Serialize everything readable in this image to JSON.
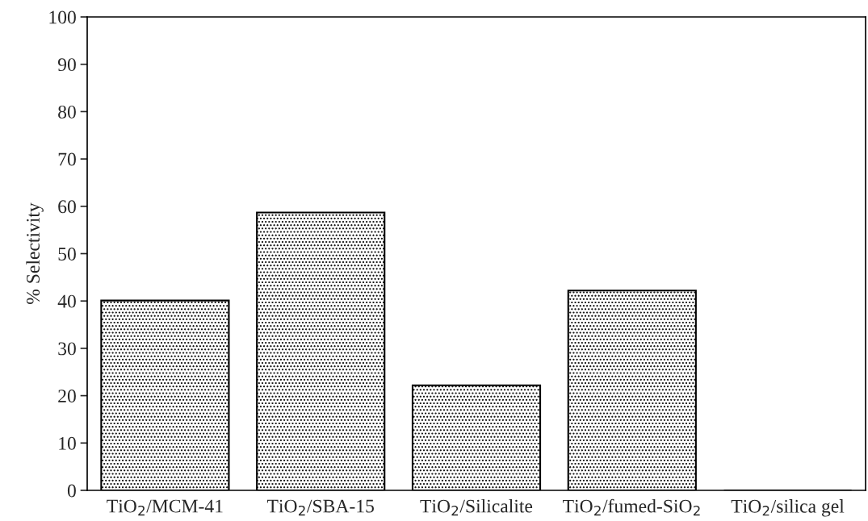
{
  "chart_data": {
    "type": "bar",
    "ylabel": "% Selectivity",
    "categories": [
      "TiO$_{2}$/MCM-41",
      "TiO$_{2}$/SBA-15",
      "TiO$_{2}$/Silicalite",
      "TiO$_{2}$/fumed-SiO$_{2}$",
      "TiO$_{2}$/silica gel"
    ],
    "values": [
      40.1,
      58.7,
      22.2,
      42.2,
      0
    ],
    "color": "#000000",
    "ylim": [
      0,
      100
    ],
    "yticks": [
      0,
      10,
      20,
      30,
      40,
      50,
      60,
      70,
      80,
      90,
      100
    ],
    "grid": false
  }
}
